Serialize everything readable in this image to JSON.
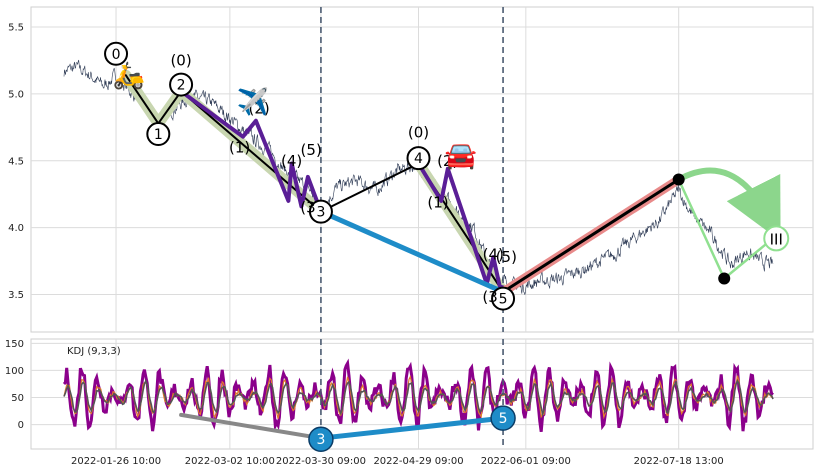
{
  "chart_data": [
    {
      "type": "line",
      "panel": "price",
      "ylim": [
        3.22,
        5.65
      ],
      "grid": true,
      "y_ticks": [
        "3.5",
        "4.0",
        "4.5",
        "5.0",
        "5.5"
      ],
      "x_range": [
        "2022-01-10",
        "2022-08-16"
      ],
      "price_series": [
        {
          "x": "2022-01-10",
          "y": 5.17
        },
        {
          "x": "2022-01-14",
          "y": 5.2
        },
        {
          "x": "2022-01-18",
          "y": 5.14
        },
        {
          "x": "2022-01-22",
          "y": 5.06
        },
        {
          "x": "2022-01-26",
          "y": 5.13
        },
        {
          "x": "2022-02-01",
          "y": 4.98
        },
        {
          "x": "2022-02-08",
          "y": 4.8
        },
        {
          "x": "2022-02-12",
          "y": 4.88
        },
        {
          "x": "2022-02-18",
          "y": 4.98
        },
        {
          "x": "2022-02-24",
          "y": 4.94
        },
        {
          "x": "2022-03-02",
          "y": 4.82
        },
        {
          "x": "2022-03-08",
          "y": 4.68
        },
        {
          "x": "2022-03-14",
          "y": 4.58
        },
        {
          "x": "2022-03-20",
          "y": 4.4
        },
        {
          "x": "2022-03-26",
          "y": 4.3
        },
        {
          "x": "2022-03-30",
          "y": 4.15
        },
        {
          "x": "2022-04-04",
          "y": 4.3
        },
        {
          "x": "2022-04-10",
          "y": 4.35
        },
        {
          "x": "2022-04-16",
          "y": 4.28
        },
        {
          "x": "2022-04-22",
          "y": 4.42
        },
        {
          "x": "2022-04-29",
          "y": 4.48
        },
        {
          "x": "2022-05-04",
          "y": 4.3
        },
        {
          "x": "2022-05-10",
          "y": 4.15
        },
        {
          "x": "2022-05-16",
          "y": 4.0
        },
        {
          "x": "2022-05-21",
          "y": 3.7
        },
        {
          "x": "2022-05-25",
          "y": 3.6
        },
        {
          "x": "2022-05-30",
          "y": 3.55
        },
        {
          "x": "2022-06-05",
          "y": 3.6
        },
        {
          "x": "2022-06-12",
          "y": 3.62
        },
        {
          "x": "2022-06-20",
          "y": 3.7
        },
        {
          "x": "2022-06-28",
          "y": 3.8
        },
        {
          "x": "2022-07-06",
          "y": 3.95
        },
        {
          "x": "2022-07-12",
          "y": 4.05
        },
        {
          "x": "2022-07-18",
          "y": 4.28
        },
        {
          "x": "2022-07-22",
          "y": 4.1
        },
        {
          "x": "2022-07-28",
          "y": 3.95
        },
        {
          "x": "2022-08-03",
          "y": 3.72
        },
        {
          "x": "2022-08-08",
          "y": 3.82
        },
        {
          "x": "2022-08-12",
          "y": 3.75
        },
        {
          "x": "2022-08-16",
          "y": 3.72
        }
      ],
      "wave_lines": [
        {
          "color": "#c8d6b0",
          "width": 11,
          "points": [
            [
              "2022-01-29",
              5.14
            ],
            [
              "2022-02-08",
              4.78
            ],
            [
              "2022-02-15",
              5.02
            ],
            [
              "2022-03-30",
              4.12
            ]
          ]
        },
        {
          "color": "#c8d6b0",
          "width": 11,
          "points": [
            [
              "2022-04-29",
              4.48
            ],
            [
              "2022-05-25",
              3.52
            ]
          ]
        },
        {
          "color": "#000000",
          "width": 2,
          "points": [
            [
              "2022-01-29",
              5.14
            ],
            [
              "2022-02-08",
              4.78
            ],
            [
              "2022-02-15",
              5.02
            ],
            [
              "2022-03-30",
              4.12
            ],
            [
              "2022-04-29",
              4.48
            ],
            [
              "2022-05-25",
              3.52
            ]
          ]
        },
        {
          "color": "#5a1e96",
          "width": 4,
          "points": [
            [
              "2022-02-15",
              5.02
            ],
            [
              "2022-03-06",
              4.68
            ],
            [
              "2022-03-10",
              4.8
            ],
            [
              "2022-03-20",
              4.2
            ],
            [
              "2022-03-21",
              4.48
            ],
            [
              "2022-03-24",
              4.16
            ],
            [
              "2022-03-26",
              4.38
            ],
            [
              "2022-03-30",
              4.12
            ]
          ]
        },
        {
          "color": "#5a1e96",
          "width": 4,
          "points": [
            [
              "2022-04-29",
              4.48
            ],
            [
              "2022-05-06",
              4.2
            ],
            [
              "2022-05-08",
              4.44
            ],
            [
              "2022-05-20",
              3.58
            ],
            [
              "2022-05-22",
              3.78
            ],
            [
              "2022-05-24",
              3.56
            ],
            [
              "2022-05-27",
              3.54
            ]
          ]
        },
        {
          "color": "#1e8cc8",
          "width": 5,
          "points": [
            [
              "2022-03-30",
              4.12
            ],
            [
              "2022-05-25",
              3.52
            ]
          ]
        },
        {
          "color": "#e88a8a",
          "width": 9,
          "points": [
            [
              "2022-05-25",
              3.52
            ],
            [
              "2022-07-18",
              4.36
            ]
          ]
        },
        {
          "color": "#000000",
          "width": 3,
          "points": [
            [
              "2022-05-25",
              3.52
            ],
            [
              "2022-07-18",
              4.36
            ]
          ]
        },
        {
          "color": "#90e090",
          "width": 2.5,
          "points": [
            [
              "2022-07-18",
              4.36
            ],
            [
              "2022-08-01",
              3.62
            ],
            [
              "2022-08-16",
              3.92
            ]
          ]
        }
      ],
      "wave_markers": [
        {
          "label": "0",
          "x": "2022-01-26",
          "y": 5.3,
          "style": "circle"
        },
        {
          "label": "1",
          "x": "2022-02-08",
          "y": 4.7,
          "style": "circle"
        },
        {
          "label": "2",
          "x": "2022-02-15",
          "y": 5.07,
          "style": "circle"
        },
        {
          "label": "3",
          "x": "2022-03-30",
          "y": 4.12,
          "style": "circle"
        },
        {
          "label": "4",
          "x": "2022-04-29",
          "y": 4.52,
          "style": "circle"
        },
        {
          "label": "5",
          "x": "2022-05-25",
          "y": 3.47,
          "style": "circle"
        },
        {
          "label": "(0)",
          "x": "2022-02-15",
          "y": 5.25,
          "style": "text"
        },
        {
          "label": "(2)",
          "x": "2022-03-11",
          "y": 4.89,
          "style": "text"
        },
        {
          "label": "(1)",
          "x": "2022-03-05",
          "y": 4.6,
          "style": "text"
        },
        {
          "label": "(4)",
          "x": "2022-03-21",
          "y": 4.5,
          "style": "text"
        },
        {
          "label": "(5)",
          "x": "2022-03-27",
          "y": 4.58,
          "style": "text"
        },
        {
          "label": "(3",
          "x": "2022-03-26",
          "y": 4.15,
          "style": "text"
        },
        {
          "label": "(0)",
          "x": "2022-04-29",
          "y": 4.71,
          "style": "text"
        },
        {
          "label": "(2)",
          "x": "2022-05-08",
          "y": 4.5,
          "style": "text"
        },
        {
          "label": "(1)",
          "x": "2022-05-05",
          "y": 4.19,
          "style": "text"
        },
        {
          "label": "(4)",
          "x": "2022-05-22",
          "y": 3.8,
          "style": "text"
        },
        {
          "label": "(5)",
          "x": "2022-05-26",
          "y": 3.78,
          "style": "text"
        },
        {
          "label": "(3",
          "x": "2022-05-21",
          "y": 3.48,
          "style": "text"
        },
        {
          "label": "III",
          "x": "2022-08-17",
          "y": 3.92,
          "style": "circle-green"
        }
      ],
      "pivot_dots": [
        {
          "x": "2022-07-18",
          "y": 4.36
        },
        {
          "x": "2022-08-01",
          "y": 3.62
        }
      ],
      "projection_arrow": {
        "from": [
          "2022-07-18",
          4.36
        ],
        "to": [
          "2022-08-15",
          4.06
        ],
        "color": "#90e090"
      },
      "event_markers": [
        {
          "x": "2022-03-30",
          "style": "dashed"
        },
        {
          "x": "2022-05-25",
          "style": "dashed"
        }
      ],
      "emoji_annotations": [
        {
          "symbol": "🛵",
          "x": "2022-01-30",
          "y": 5.15
        },
        {
          "symbol": "✈️",
          "x": "2022-03-09",
          "y": 4.95
        },
        {
          "symbol": "🚘",
          "x": "2022-05-12",
          "y": 4.55
        }
      ]
    },
    {
      "type": "line",
      "panel": "indicator",
      "ylim": [
        -45,
        158
      ],
      "grid": true,
      "legend_text": "KDJ (9,3,3)",
      "y_ticks": [
        "0",
        "50",
        "100",
        "150"
      ],
      "x_ticks": [
        "2022-01-26 10:00",
        "2022-03-02 10:00",
        "2022-03-30 09:00",
        "2022-04-29 09:00",
        "2022-06-01 09:00",
        "2022-07-18 13:00"
      ],
      "x_tick_dates": [
        "2022-01-26",
        "2022-03-02",
        "2022-03-30",
        "2022-04-29",
        "2022-06-01",
        "2022-07-18"
      ],
      "trend_lines": [
        {
          "color": "#888888",
          "width": 4,
          "points": [
            [
              "2022-02-15",
              18
            ],
            [
              "2022-03-30",
              -25
            ]
          ]
        },
        {
          "color": "#1e8cc8",
          "width": 5,
          "points": [
            [
              "2022-03-30",
              -25
            ],
            [
              "2022-05-25",
              12
            ]
          ]
        }
      ],
      "bubbles": [
        {
          "label": "3",
          "x": "2022-03-30",
          "y": -27
        },
        {
          "label": "5",
          "x": "2022-05-25",
          "y": 12
        }
      ]
    }
  ]
}
